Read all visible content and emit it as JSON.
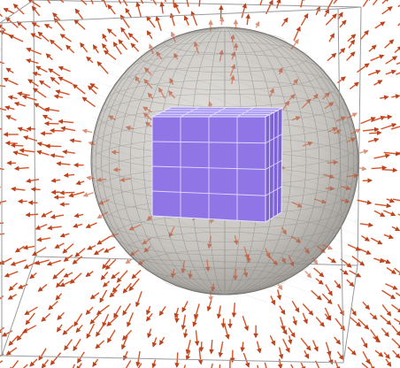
{
  "scene": {
    "description_free": true,
    "colors": {
      "background": "#ffffff",
      "bounding_box": "#8c8c8c",
      "sphere_fill": "#bdbab5",
      "sphere_mesh": "#7d7a76",
      "cube_fill": "#8f75e6",
      "cube_edge": "#e8e3ff",
      "arrow": "#d24a1c",
      "arrow_dark": "#9a2f0d"
    },
    "icons": [
      "vector-arrow-icon"
    ],
    "cube_grid_divisions": 3,
    "sphere_mesh_rings": 18,
    "sphere_mesh_meridians": 24
  }
}
